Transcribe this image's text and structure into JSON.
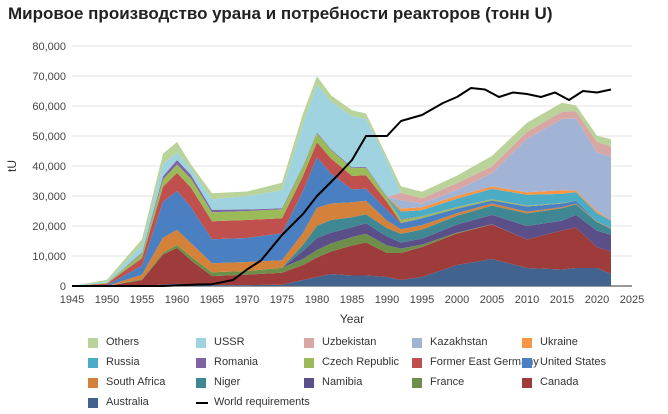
{
  "chart_data": {
    "type": "area",
    "stacked": true,
    "title": "Мировое производство урана и потребности реакторов (тонн U)",
    "xlabel": "Year",
    "ylabel": "tU",
    "xlim": [
      1945,
      2025
    ],
    "ylim": [
      0,
      80000
    ],
    "xticks": [
      1945,
      1950,
      1955,
      1960,
      1965,
      1970,
      1975,
      1980,
      1985,
      1990,
      1995,
      2000,
      2005,
      2010,
      2015,
      2020,
      2025
    ],
    "yticks": [
      "0",
      "10,000",
      "20,000",
      "30,000",
      "40,000",
      "50,000",
      "60,000",
      "70,000",
      "80,000"
    ],
    "grid": "horizontal",
    "legend_position": "bottom",
    "x": [
      1945,
      1950,
      1955,
      1958,
      1960,
      1962,
      1965,
      1970,
      1975,
      1978,
      1980,
      1982,
      1985,
      1987,
      1990,
      1992,
      1995,
      2000,
      2005,
      2010,
      2015,
      2017,
      2020,
      2022
    ],
    "series": [
      {
        "name": "Australia",
        "color": "#41638e",
        "values": [
          0,
          0,
          0,
          500,
          700,
          600,
          300,
          300,
          400,
          2000,
          3000,
          4000,
          3500,
          3500,
          3000,
          2000,
          3000,
          7000,
          9000,
          6000,
          5500,
          6000,
          6000,
          4000
        ]
      },
      {
        "name": "Canada",
        "color": "#9e3b3b",
        "values": [
          0,
          0,
          2000,
          10000,
          12000,
          8000,
          3000,
          3500,
          4000,
          5000,
          6500,
          7500,
          10000,
          11000,
          8000,
          9000,
          10000,
          10500,
          11500,
          9500,
          13000,
          13500,
          7000,
          7500
        ]
      },
      {
        "name": "France",
        "color": "#6d8f4a",
        "values": [
          0,
          0,
          300,
          600,
          1000,
          1200,
          1300,
          1200,
          1700,
          2000,
          2500,
          2700,
          2800,
          2900,
          2500,
          1500,
          800,
          300,
          100,
          0,
          0,
          0,
          0,
          0
        ]
      },
      {
        "name": "Namibia",
        "color": "#5b4f8a",
        "values": [
          0,
          0,
          0,
          0,
          0,
          0,
          0,
          0,
          0,
          2700,
          4000,
          3600,
          3300,
          3500,
          3000,
          2000,
          2000,
          2700,
          3100,
          4500,
          3300,
          4200,
          5400,
          5600
        ]
      },
      {
        "name": "Niger",
        "color": "#3f8893",
        "values": [
          0,
          0,
          0,
          0,
          0,
          0,
          0,
          0,
          0,
          2000,
          4100,
          4200,
          3300,
          3000,
          2800,
          2900,
          3000,
          2900,
          3100,
          4200,
          4100,
          3500,
          2900,
          2000
        ]
      },
      {
        "name": "South Africa",
        "color": "#d4813a",
        "values": [
          0,
          0,
          1500,
          5000,
          5000,
          4500,
          3000,
          3000,
          2500,
          4000,
          6000,
          5500,
          5000,
          4500,
          2500,
          1500,
          1500,
          900,
          700,
          600,
          400,
          300,
          200,
          200
        ]
      },
      {
        "name": "United States",
        "color": "#4a7fc1",
        "values": [
          0,
          300,
          3000,
          12000,
          13000,
          12000,
          8000,
          8000,
          9000,
          14000,
          16800,
          10000,
          4300,
          4000,
          3400,
          2000,
          2300,
          1500,
          1000,
          1700,
          1200,
          900,
          0,
          0
        ]
      },
      {
        "name": "Former East Germany",
        "color": "#c0504d",
        "values": [
          0,
          500,
          2500,
          5000,
          6000,
          6500,
          6000,
          6000,
          5000,
          5000,
          5000,
          5000,
          4500,
          4500,
          2800,
          200,
          0,
          0,
          0,
          0,
          0,
          0,
          0,
          0
        ]
      },
      {
        "name": "Czech Republic",
        "color": "#9bbb59",
        "values": [
          0,
          300,
          1500,
          2500,
          2800,
          3000,
          3000,
          3000,
          3000,
          3000,
          3000,
          2800,
          2600,
          2500,
          1500,
          1000,
          600,
          500,
          400,
          250,
          150,
          0,
          0,
          0
        ]
      },
      {
        "name": "Romania",
        "color": "#8064a2",
        "values": [
          0,
          0,
          300,
          1000,
          1500,
          1200,
          800,
          500,
          300,
          300,
          300,
          300,
          300,
          300,
          300,
          200,
          100,
          80,
          80,
          80,
          50,
          0,
          0,
          0
        ]
      },
      {
        "name": "Russia",
        "color": "#4bacc6",
        "values": [
          0,
          0,
          0,
          0,
          0,
          0,
          0,
          0,
          0,
          0,
          0,
          0,
          0,
          0,
          0,
          2500,
          2000,
          2700,
          3400,
          3600,
          3000,
          2900,
          2800,
          2500
        ]
      },
      {
        "name": "Ukraine",
        "color": "#f79646",
        "values": [
          0,
          0,
          0,
          0,
          0,
          0,
          0,
          0,
          0,
          0,
          0,
          0,
          0,
          0,
          0,
          1000,
          1000,
          1000,
          800,
          800,
          1200,
          500,
          700,
          100
        ]
      },
      {
        "name": "Kazakhstan",
        "color": "#a2b4d5",
        "values": [
          0,
          0,
          0,
          0,
          0,
          0,
          0,
          0,
          0,
          0,
          0,
          0,
          0,
          0,
          0,
          2800,
          1200,
          1900,
          4400,
          17800,
          23800,
          24000,
          19500,
          21200
        ]
      },
      {
        "name": "Uzbekistan",
        "color": "#d9a6a6",
        "values": [
          0,
          0,
          0,
          0,
          0,
          0,
          0,
          0,
          0,
          0,
          0,
          0,
          0,
          0,
          0,
          2500,
          1700,
          2300,
          2300,
          2400,
          2400,
          2400,
          3500,
          3300
        ]
      },
      {
        "name": "USSR",
        "color": "#9fd3e0",
        "values": [
          0,
          500,
          2500,
          4000,
          2500,
          2000,
          3500,
          4500,
          6000,
          14000,
          16000,
          16000,
          17000,
          16000,
          12000,
          0,
          0,
          0,
          0,
          0,
          0,
          0,
          0,
          0
        ]
      },
      {
        "name": "Others",
        "color": "#b9d39a",
        "values": [
          0,
          500,
          2000,
          3500,
          3500,
          1500,
          2000,
          1500,
          2500,
          3500,
          2700,
          2000,
          2000,
          1800,
          1200,
          2100,
          2200,
          2500,
          3500,
          3000,
          3000,
          2000,
          2100,
          2500
        ]
      }
    ],
    "line_series": {
      "name": "World requirements",
      "color": "#000000",
      "x": [
        1945,
        1958,
        1963,
        1965,
        1968,
        1970,
        1972,
        1975,
        1978,
        1980,
        1983,
        1985,
        1987,
        1990,
        1992,
        1995,
        1998,
        2000,
        2002,
        2004,
        2006,
        2008,
        2010,
        2012,
        2014,
        2016,
        2018,
        2020,
        2022
      ],
      "values": [
        0,
        0,
        500,
        600,
        2000,
        5500,
        8500,
        17000,
        24000,
        30000,
        37000,
        42000,
        50000,
        50000,
        55000,
        57000,
        61000,
        63000,
        66000,
        65500,
        63000,
        64500,
        64000,
        63000,
        64500,
        62000,
        65000,
        64500,
        65500
      ]
    },
    "legend": [
      {
        "name": "Others",
        "kind": "area",
        "color": "#b9d39a"
      },
      {
        "name": "USSR",
        "kind": "area",
        "color": "#9fd3e0"
      },
      {
        "name": "Uzbekistan",
        "kind": "area",
        "color": "#d9a6a6"
      },
      {
        "name": "Kazakhstan",
        "kind": "area",
        "color": "#a2b4d5"
      },
      {
        "name": "Ukraine",
        "kind": "area",
        "color": "#f79646"
      },
      {
        "name": "Russia",
        "kind": "area",
        "color": "#4bacc6"
      },
      {
        "name": "Romania",
        "kind": "area",
        "color": "#8064a2"
      },
      {
        "name": "Czech Republic",
        "kind": "area",
        "color": "#9bbb59"
      },
      {
        "name": "Former East Germany",
        "kind": "area",
        "color": "#c0504d"
      },
      {
        "name": "United States",
        "kind": "area",
        "color": "#4a7fc1"
      },
      {
        "name": "South Africa",
        "kind": "area",
        "color": "#d4813a"
      },
      {
        "name": "Niger",
        "kind": "area",
        "color": "#3f8893"
      },
      {
        "name": "Namibia",
        "kind": "area",
        "color": "#5b4f8a"
      },
      {
        "name": "France",
        "kind": "area",
        "color": "#6d8f4a"
      },
      {
        "name": "Canada",
        "kind": "area",
        "color": "#9e3b3b"
      },
      {
        "name": "Australia",
        "kind": "area",
        "color": "#41638e"
      },
      {
        "name": "World requirements",
        "kind": "line",
        "color": "#000000"
      }
    ]
  }
}
